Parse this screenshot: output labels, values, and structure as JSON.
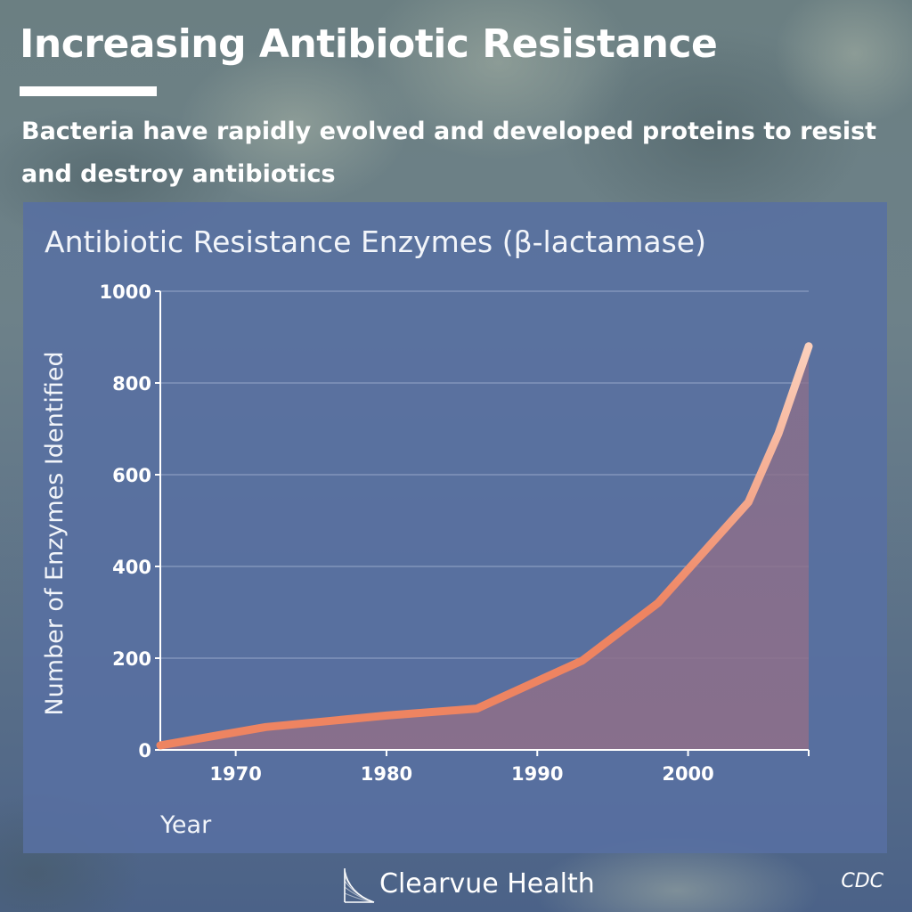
{
  "header": {
    "title": "Increasing Antibiotic Resistance",
    "subtitle": "Bacteria have rapidly evolved and developed proteins to resist and destroy antibiotics"
  },
  "chart_data": {
    "type": "area",
    "title": "Antibiotic Resistance Enzymes (β-lactamase)",
    "xlabel": "Year",
    "ylabel": "Number of Enzymes Identified",
    "x_ticks": [
      1970,
      1980,
      1990,
      2000
    ],
    "y_ticks": [
      0,
      200,
      400,
      600,
      800,
      1000
    ],
    "xlim": [
      1965,
      2008
    ],
    "ylim": [
      0,
      1000
    ],
    "grid": true,
    "series": [
      {
        "x": [
          1965,
          1972,
          1980,
          1986,
          1993,
          1998,
          2004,
          2006,
          2008
        ],
        "values": [
          10,
          50,
          75,
          90,
          195,
          320,
          540,
          690,
          880
        ]
      }
    ]
  },
  "footer": {
    "brand": "Clearvue Health",
    "source": "CDC"
  },
  "colors": {
    "line_start": "#ee8461",
    "line_end": "#fbd0bc",
    "area_fill": "#8d6f8a",
    "panel": "#5870a2",
    "grid": "#b4c0dc",
    "text": "#ffffff"
  },
  "icons": {
    "brand": "brand-logo-icon"
  }
}
